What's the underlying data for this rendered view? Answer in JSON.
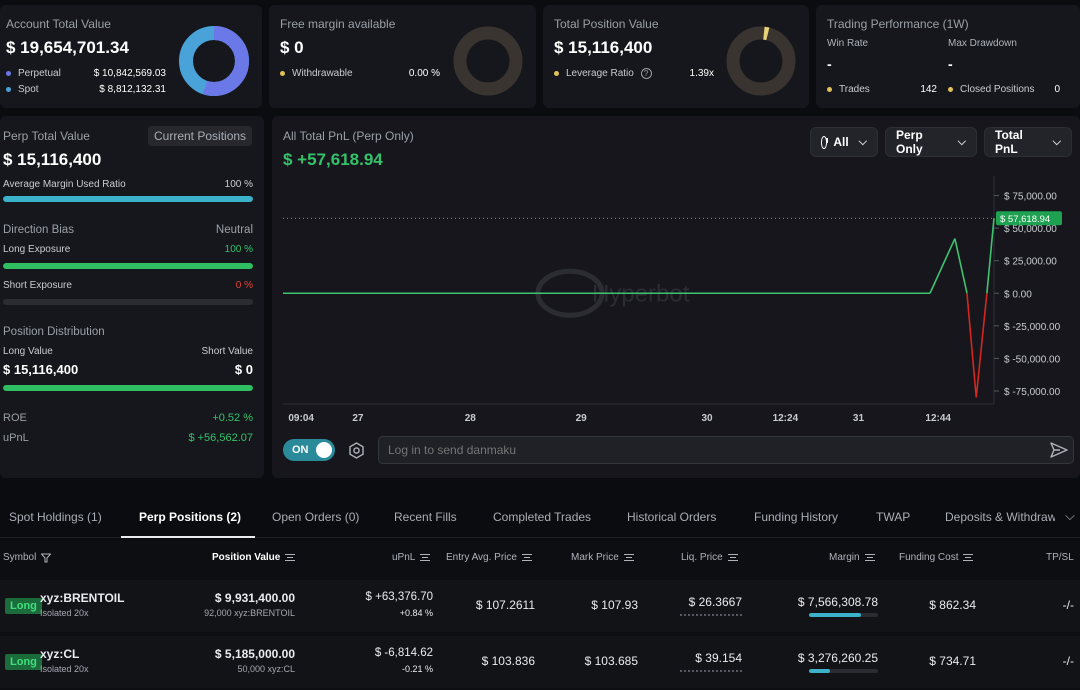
{
  "summary": {
    "account": {
      "label": "Account Total Value",
      "value": "$ 19,654,701.34",
      "perpetual_label": "Perpetual",
      "perpetual_value": "$ 10,842,569.03",
      "spot_label": "Spot",
      "spot_value": "$ 8,812,132.31",
      "perpetual_color": "#6b78e8",
      "spot_color": "#4aa3d8"
    },
    "margin": {
      "label": "Free margin available",
      "value": "$ 0",
      "withdrawable_label": "Withdrawable",
      "withdrawable_value": "0.00 %"
    },
    "position": {
      "label": "Total Position Value",
      "value": "$ 15,116,400",
      "leverage_label": "Leverage Ratio",
      "leverage_value": "1.39x"
    },
    "performance": {
      "label": "Trading Performance (1W)",
      "win_rate_label": "Win Rate",
      "win_rate_value": "-",
      "max_drawdown_label": "Max Drawdown",
      "max_drawdown_value": "-",
      "trades_label": "Trades",
      "trades_value": "142",
      "closed_label": "Closed Positions",
      "closed_value": "0"
    }
  },
  "perp_panel": {
    "title": "Perp Total Value",
    "current_positions_button": "Current Positions",
    "value": "$ 15,116,400",
    "avg_margin_label": "Average Margin Used Ratio",
    "avg_margin_value": "100 %",
    "avg_margin_fraction": 1.0,
    "direction_bias_label": "Direction Bias",
    "direction_bias_value": "Neutral",
    "long_exposure_label": "Long Exposure",
    "long_exposure_value": "100 %",
    "long_exposure_fraction": 1.0,
    "short_exposure_label": "Short Exposure",
    "short_exposure_value": "0 %",
    "short_exposure_fraction": 0.0,
    "distribution_label": "Position Distribution",
    "long_value_label": "Long Value",
    "short_value_label": "Short Value",
    "long_value": "$ 15,116,400",
    "short_value": "$ 0",
    "distribution_long_fraction": 1.0,
    "roe_label": "ROE",
    "roe_value": "+0.52 %",
    "upnl_label": "uPnL",
    "upnl_value": "$ +56,562.07"
  },
  "pnl_chart": {
    "title": "All Total PnL (Perp Only)",
    "value": "$ +57,618.94",
    "filters": {
      "range": "All",
      "scope": "Perp Only",
      "metric": "Total PnL"
    },
    "watermark": "Hyperbot",
    "current_tag": "$ 57,618.94",
    "danmaku_toggle": "ON",
    "danmaku_placeholder": "Log in to send danmaku"
  },
  "chart_data": {
    "type": "line",
    "title": "All Total PnL (Perp Only)",
    "x_ticks": [
      "09:04",
      "27",
      "28",
      "29",
      "30",
      "12:24",
      "31",
      "12:44"
    ],
    "y_ticks": [
      "$ 75,000.00",
      "$ 50,000.00",
      "$ 25,000.00",
      "$ 0.00",
      "$ -25,000.00",
      "$ -50,000.00",
      "$ -75,000.00"
    ],
    "ylim": [
      -85000,
      90000
    ],
    "points": [
      [
        0,
        0
      ],
      [
        0.91,
        0
      ],
      [
        0.945,
        42000
      ],
      [
        0.962,
        0
      ],
      [
        0.975,
        -80000
      ],
      [
        0.99,
        0
      ],
      [
        1.0,
        57618.94
      ]
    ],
    "current_value": 57618.94,
    "color_positive": "#3fc36e",
    "color_negative": "#d2281e"
  },
  "tabs": [
    {
      "label": "Spot Holdings (1)"
    },
    {
      "label": "Perp Positions (2)"
    },
    {
      "label": "Open Orders (0)"
    },
    {
      "label": "Recent Fills"
    },
    {
      "label": "Completed Trades"
    },
    {
      "label": "Historical Orders"
    },
    {
      "label": "Funding History"
    },
    {
      "label": "TWAP"
    },
    {
      "label": "Deposits & Withdraw"
    }
  ],
  "table": {
    "headers": {
      "symbol": "Symbol",
      "position_value": "Position Value",
      "upnl": "uPnL",
      "entry": "Entry Avg. Price",
      "mark": "Mark Price",
      "liq": "Liq. Price",
      "margin": "Margin",
      "funding": "Funding Cost",
      "tpsl": "TP/SL"
    },
    "rows": [
      {
        "side": "Long",
        "symbol": "xyz:BRENTOIL",
        "mode": "Isolated 20x",
        "position_value": "$ 9,931,400.00",
        "position_size": "92,000 xyz:BRENTOIL",
        "upnl": "$ +63,376.70",
        "upnl_pct": "+0.84 %",
        "entry": "$ 107.2611",
        "mark": "$ 107.93",
        "liq": "$ 26.3667",
        "margin": "$ 7,566,308.78",
        "margin_fraction": 0.76,
        "funding": "$ 862.34",
        "tpsl": "-/-"
      },
      {
        "side": "Long",
        "symbol": "xyz:CL",
        "mode": "Isolated 20x",
        "position_value": "$ 5,185,000.00",
        "position_size": "50,000 xyz:CL",
        "upnl": "$ -6,814.62",
        "upnl_pct": "-0.21 %",
        "entry": "$ 103.836",
        "mark": "$ 103.685",
        "liq": "$ 39.154",
        "margin": "$ 3,276,260.25",
        "margin_fraction": 0.3,
        "funding": "$ 734.71",
        "tpsl": "-/-"
      }
    ]
  }
}
